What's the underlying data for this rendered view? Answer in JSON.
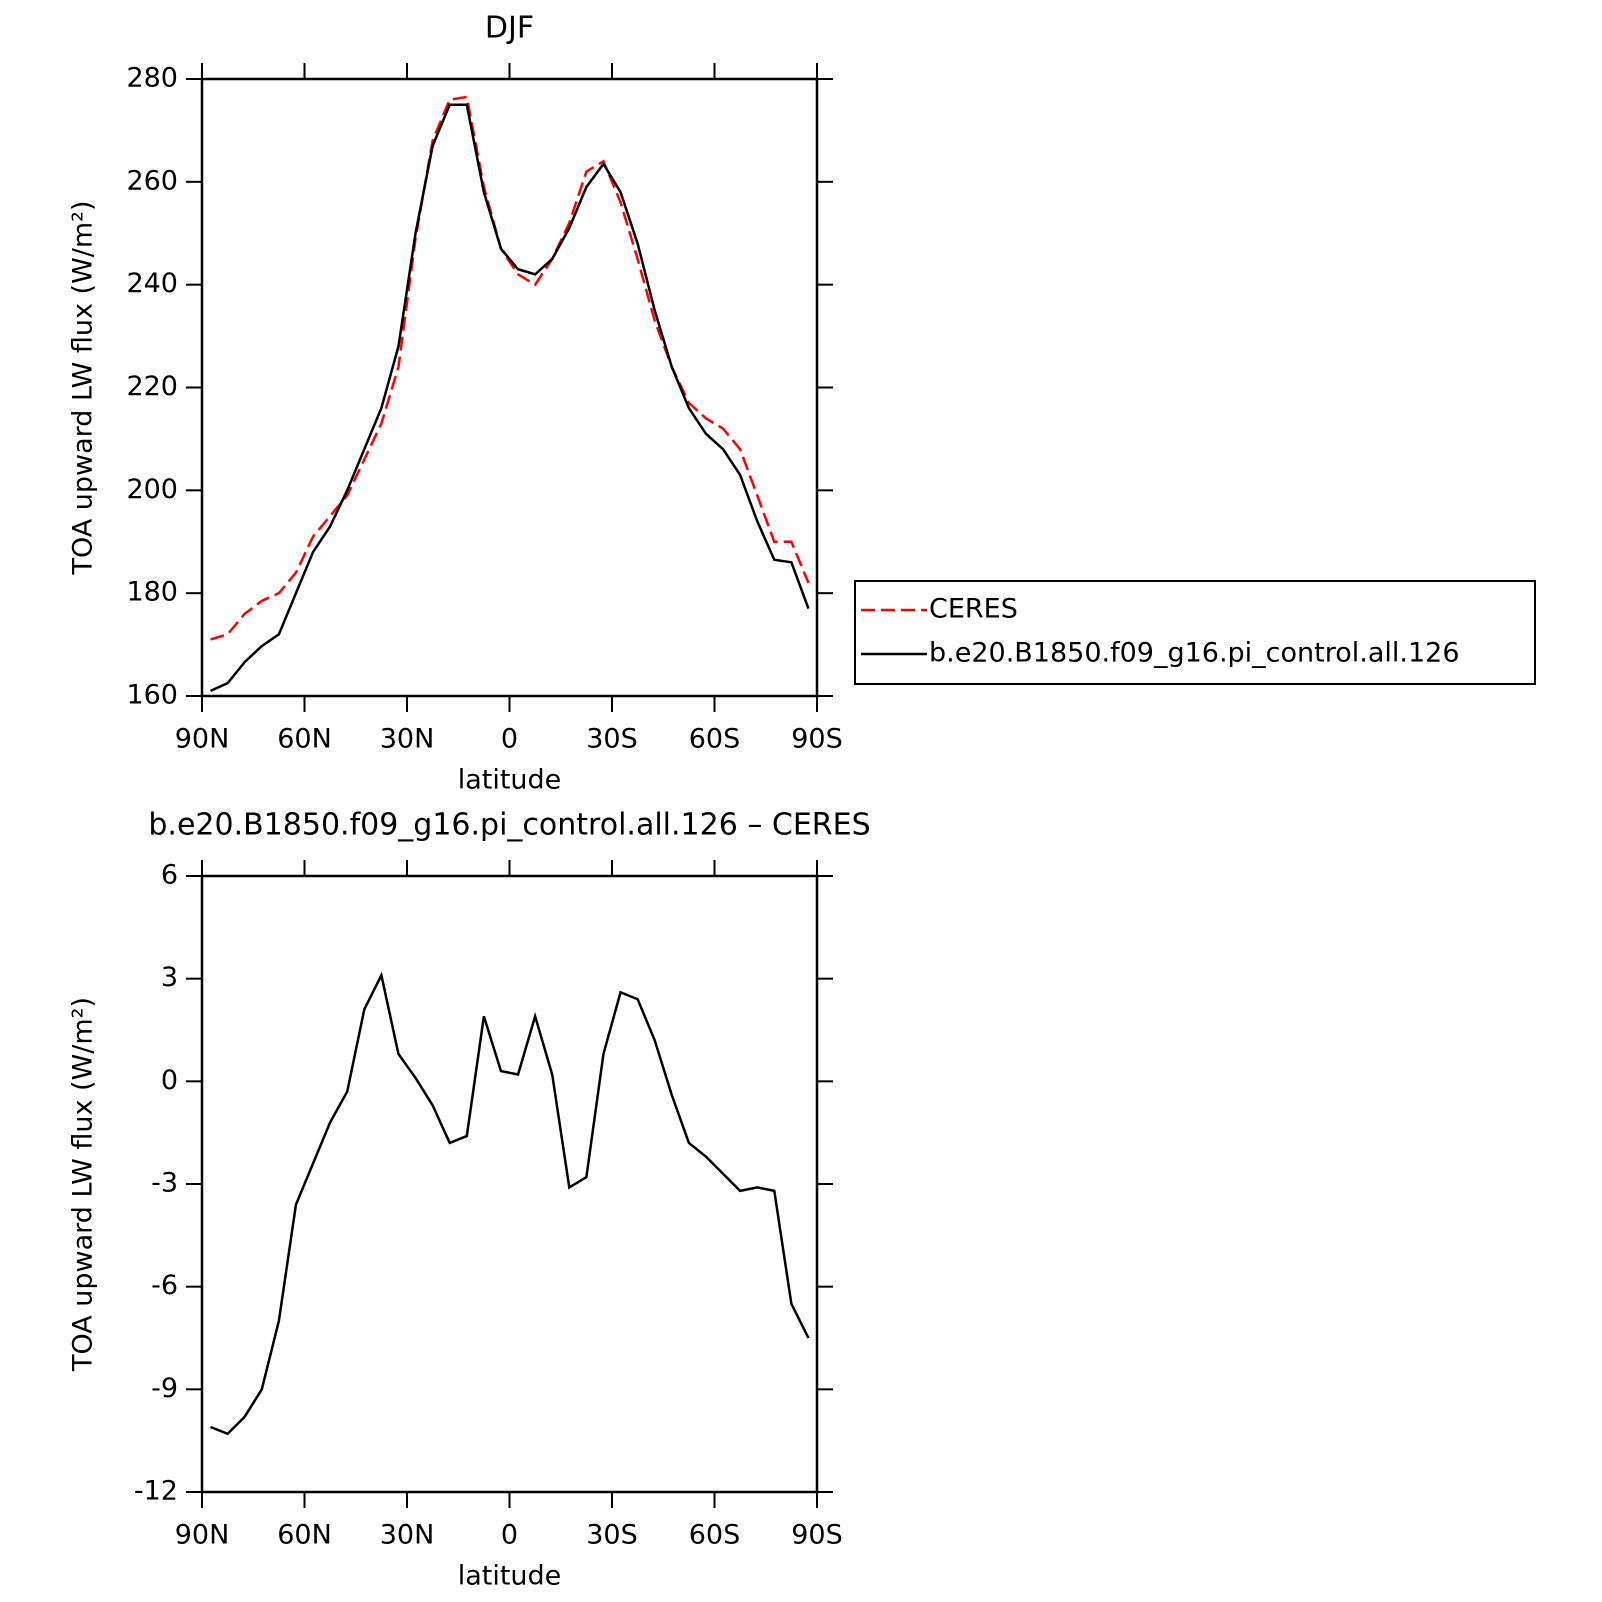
{
  "chart_data": [
    {
      "type": "line",
      "title": "DJF",
      "xlabel": "latitude",
      "ylabel": "TOA upward LW flux (W/m²)",
      "x": [
        87.5,
        82.5,
        77.5,
        72.5,
        67.5,
        62.5,
        57.5,
        52.5,
        47.5,
        42.5,
        37.5,
        32.5,
        27.5,
        22.5,
        17.5,
        12.5,
        7.5,
        2.5,
        -2.5,
        -7.5,
        -12.5,
        -17.5,
        -22.5,
        -27.5,
        -32.5,
        -37.5,
        -42.5,
        -47.5,
        -52.5,
        -57.5,
        -62.5,
        -67.5,
        -72.5,
        -77.5,
        -82.5,
        -87.5
      ],
      "series": [
        {
          "name": "CERES",
          "color": "#ff0000",
          "dash": "dashed",
          "values": [
            171,
            172,
            176,
            178.5,
            180,
            184,
            191,
            195,
            199,
            206,
            213,
            224,
            249,
            268,
            276,
            276.5,
            259,
            247,
            242,
            240,
            245,
            252,
            262,
            264,
            256,
            245,
            233,
            224,
            217,
            214,
            212,
            208,
            199,
            190,
            190,
            182
          ]
        },
        {
          "name": "b.e20.B1850.f09_g16.pi_control.all.126",
          "color": "#000000",
          "dash": "solid",
          "values": [
            161,
            162.5,
            166.6,
            169.7,
            172,
            180,
            188,
            193,
            200,
            208,
            216,
            228,
            250,
            267,
            275,
            275,
            258,
            247,
            243,
            242,
            245,
            251,
            259,
            263.5,
            258,
            248,
            235,
            224,
            216,
            211,
            208,
            203,
            194,
            186.5,
            186,
            177
          ]
        }
      ],
      "xlim": [
        90,
        -90
      ],
      "xticks": [
        {
          "value": 90,
          "label": "90N"
        },
        {
          "value": 60,
          "label": "60N"
        },
        {
          "value": 30,
          "label": "30N"
        },
        0,
        {
          "value": -30,
          "label": "30S"
        },
        {
          "value": -60,
          "label": "60S"
        },
        {
          "value": -90,
          "label": "90S"
        }
      ],
      "ylim": [
        160,
        280
      ],
      "yticks": [
        160,
        180,
        200,
        220,
        240,
        260,
        280
      ],
      "legend": "right"
    },
    {
      "type": "line",
      "title": "b.e20.B1850.f09_g16.pi_control.all.126 – CERES",
      "xlabel": "latitude",
      "ylabel": "TOA upward LW flux (W/m²)",
      "x": [
        87.5,
        82.5,
        77.5,
        72.5,
        67.5,
        62.5,
        57.5,
        52.5,
        47.5,
        42.5,
        37.5,
        32.5,
        27.5,
        22.5,
        17.5,
        12.5,
        7.5,
        2.5,
        -2.5,
        -7.5,
        -12.5,
        -17.5,
        -22.5,
        -27.5,
        -32.5,
        -37.5,
        -42.5,
        -47.5,
        -52.5,
        -57.5,
        -62.5,
        -67.5,
        -72.5,
        -77.5,
        -82.5,
        -87.5
      ],
      "series": [
        {
          "color": "#000000",
          "dash": "solid",
          "values": [
            -10.1,
            -10.3,
            -9.8,
            -9,
            -7,
            -3.6,
            -2.4,
            -1.2,
            -0.3,
            2.1,
            3.1,
            0.8,
            0.1,
            -0.7,
            -1.8,
            -1.6,
            1.9,
            0.3,
            0.2,
            1.9,
            0.2,
            -3.1,
            -2.8,
            0.8,
            2.6,
            2.4,
            1.2,
            -0.4,
            -1.8,
            -2.2,
            -2.7,
            -3.2,
            -3.1,
            -3.2,
            -6.5,
            -7.5
          ]
        }
      ],
      "xlim": [
        90,
        -90
      ],
      "xticks": [
        {
          "value": 90,
          "label": "90N"
        },
        {
          "value": 60,
          "label": "60N"
        },
        {
          "value": 30,
          "label": "30N"
        },
        0,
        {
          "value": -30,
          "label": "30S"
        },
        {
          "value": -60,
          "label": "60S"
        },
        {
          "value": -90,
          "label": "90S"
        }
      ],
      "ylim": [
        -12,
        6
      ],
      "yticks": [
        -12,
        -9,
        -6,
        -3,
        0,
        3,
        6
      ]
    }
  ]
}
